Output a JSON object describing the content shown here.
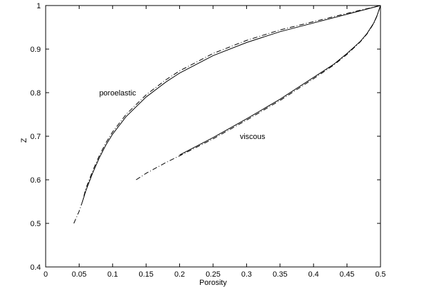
{
  "chart_data": {
    "type": "line",
    "title": "",
    "xlabel": "Porosity",
    "ylabel": "Z",
    "xlim": [
      0,
      0.5
    ],
    "ylim": [
      0.4,
      1
    ],
    "xticks": [
      0,
      0.05,
      0.1,
      0.15,
      0.2,
      0.25,
      0.3,
      0.35,
      0.4,
      0.45,
      0.5
    ],
    "xtick_labels": [
      "0",
      "0.05",
      "0.1",
      "0.15",
      "0.2",
      "0.25",
      "0.3",
      "0.35",
      "0.4",
      "0.45",
      "0.5"
    ],
    "yticks": [
      0.4,
      0.5,
      0.6,
      0.7,
      0.8,
      0.9,
      1
    ],
    "ytick_labels": [
      "0.4",
      "0.5",
      "0.6",
      "0.7",
      "0.8",
      "0.9",
      "1"
    ],
    "grid": false,
    "annotations": [
      {
        "text": "poroelastic",
        "x": 0.08,
        "y": 0.8
      },
      {
        "text": "viscous",
        "x": 0.29,
        "y": 0.7
      }
    ],
    "series": [
      {
        "style": "solid",
        "x": [
          0.055,
          0.06,
          0.07,
          0.08,
          0.09,
          0.1,
          0.12,
          0.15,
          0.18,
          0.2,
          0.25,
          0.3,
          0.35,
          0.4,
          0.45,
          0.5
        ],
        "y": [
          0.55,
          0.575,
          0.615,
          0.65,
          0.68,
          0.705,
          0.745,
          0.79,
          0.825,
          0.845,
          0.885,
          0.915,
          0.94,
          0.96,
          0.98,
          1.0
        ]
      },
      {
        "style": "dashdot",
        "x": [
          0.042,
          0.05,
          0.055,
          0.06,
          0.07,
          0.08,
          0.09,
          0.1,
          0.12,
          0.15,
          0.18,
          0.2,
          0.25,
          0.3,
          0.35,
          0.4,
          0.45,
          0.5
        ],
        "y": [
          0.5,
          0.528,
          0.55,
          0.58,
          0.62,
          0.655,
          0.685,
          0.71,
          0.75,
          0.795,
          0.83,
          0.85,
          0.89,
          0.92,
          0.944,
          0.963,
          0.982,
          1.0
        ]
      },
      {
        "style": "solid",
        "x": [
          0.2,
          0.25,
          0.3,
          0.35,
          0.4,
          0.43,
          0.45,
          0.47,
          0.48,
          0.49,
          0.495,
          0.5
        ],
        "y": [
          0.657,
          0.697,
          0.74,
          0.785,
          0.835,
          0.865,
          0.89,
          0.918,
          0.936,
          0.96,
          0.978,
          1.0
        ]
      },
      {
        "style": "dashdot",
        "x": [
          0.135,
          0.15,
          0.18,
          0.2,
          0.25,
          0.3,
          0.35,
          0.4,
          0.43,
          0.45,
          0.47,
          0.48,
          0.49,
          0.495,
          0.5
        ],
        "y": [
          0.6,
          0.615,
          0.64,
          0.655,
          0.694,
          0.737,
          0.782,
          0.832,
          0.863,
          0.888,
          0.917,
          0.935,
          0.959,
          0.977,
          1.0
        ]
      }
    ]
  }
}
